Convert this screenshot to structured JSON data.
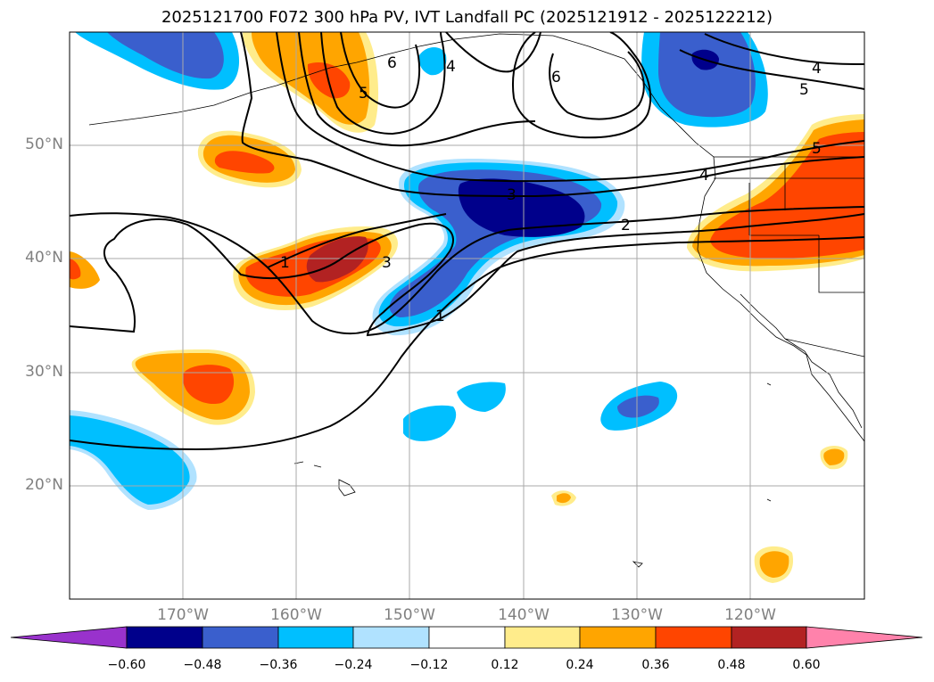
{
  "title": "2025121700 F072 300 hPa PV, IVT Landfall PC (2025121912 - 2025122212)",
  "lat_labels": [
    "50°N",
    "40°N",
    "30°N",
    "20°N"
  ],
  "lon_labels": [
    "170°W",
    "160°W",
    "150°W",
    "140°W",
    "130°W",
    "120°W"
  ],
  "colorbar": {
    "ticks": [
      "−0.60",
      "−0.48",
      "−0.36",
      "−0.24",
      "−0.12",
      "0.12",
      "0.24",
      "0.36",
      "0.48",
      "0.60"
    ],
    "colors": [
      "#9932cc",
      "#00008b",
      "#3a5fcd",
      "#00bfff",
      "#b0e2ff",
      "#ffffff",
      "#ffec8b",
      "#ffa500",
      "#ff4500",
      "#b22222",
      "#ff82ab"
    ]
  },
  "contour_labels": [
    "6",
    "4",
    "5",
    "6",
    "4",
    "5",
    "5",
    "4",
    "3",
    "2",
    "1",
    "3",
    "1"
  ]
}
